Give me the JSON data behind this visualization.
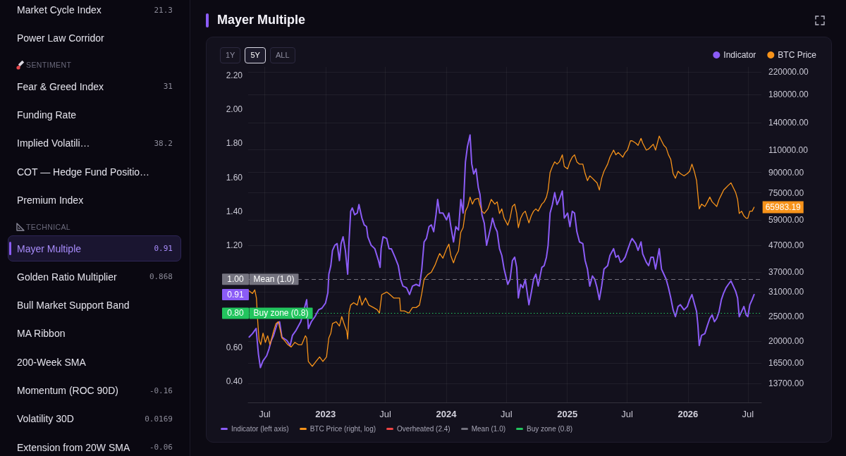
{
  "chart_data": [
    {
      "type": "other",
      "categories": [
        "Market Cycle Index",
        "Power Law Corridor"
      ],
      "values": [
        21.3,
        null
      ],
      "data_labels": true
    },
    {
      "type": "other",
      "title": "SENTIMENT",
      "categories": [
        "Fear & Greed Index",
        "Funding Rate",
        "Implied Volatili…",
        "COT — Hedge Fund Positio…",
        "Premium Index"
      ],
      "values": [
        31,
        null,
        38.2,
        null,
        null
      ],
      "data_labels": true
    },
    {
      "type": "other",
      "title": "TECHNICAL",
      "categories": [
        "Mayer Multiple",
        "Golden Ratio Multiplier",
        "Bull Market Support Band",
        "MA Ribbon",
        "200-Week SMA",
        "Momentum (ROC 90D)",
        "Volatility 30D",
        "Extension from 20W SMA"
      ],
      "values": [
        0.91,
        0.868,
        null,
        null,
        null,
        -0.16,
        0.0169,
        -0.06
      ],
      "data_labels": true
    },
    {
      "type": "line",
      "title": "Mayer Multiple",
      "annotations": [
        "1Y",
        "5Y",
        "ALL",
        {
          "text": "1.00",
          "y": 1
        },
        {
          "text": "0.91",
          "y": 0.91
        },
        {
          "text": "0.80",
          "y": 0.8
        },
        "Indicator (left axis)",
        "BTC Price (right, log)",
        "Overheated (2.4)",
        "Mean (1.0)",
        "Buy zone (0.8)"
      ],
      "series": [
        {
          "name": "Indicator",
          "color": "#8b5cf6",
          "x": [
            "2022-05-15",
            "2022-05-25",
            "2022-06-05",
            "2022-06-12",
            "2022-06-18",
            "2022-06-26",
            "2022-07-07",
            "2022-07-14",
            "2022-07-21",
            "2022-07-28",
            "2022-08-08",
            "2022-08-15",
            "2022-08-22",
            "2022-09-06",
            "2022-09-16",
            "2022-09-23",
            "2022-10-04",
            "2022-10-18",
            "2022-10-29",
            "2022-11-05",
            "2022-11-10",
            "2022-11-19",
            "2022-11-30",
            "2022-12-11",
            "2022-12-21",
            "2023-01-01",
            "2023-01-08",
            "2023-01-11",
            "2023-01-17",
            "2023-01-22",
            "2023-01-29",
            "2023-02-05",
            "2023-02-12",
            "2023-02-17",
            "2023-02-23",
            "2023-03-02",
            "2023-03-09",
            "2023-03-13",
            "2023-03-18",
            "2023-03-23",
            "2023-03-30",
            "2023-04-07",
            "2023-04-12",
            "2023-04-21",
            "2023-04-28",
            "2023-05-05",
            "2023-05-09",
            "2023-05-19",
            "2023-05-30",
            "2023-06-10",
            "2023-06-15",
            "2023-06-18",
            "2023-06-24",
            "2023-07-05",
            "2023-07-12",
            "2023-07-19",
            "2023-07-30",
            "2023-08-09",
            "2023-08-16",
            "2023-08-23",
            "2023-09-03",
            "2023-09-12",
            "2023-09-21",
            "2023-10-02",
            "2023-10-12",
            "2023-10-19",
            "2023-10-26",
            "2023-11-02",
            "2023-11-10",
            "2023-11-17",
            "2023-11-24",
            "2023-12-01",
            "2023-12-06",
            "2023-12-12",
            "2023-12-22",
            "2024-01-02",
            "2024-01-09",
            "2024-01-15",
            "2024-01-23",
            "2024-01-30",
            "2024-02-07",
            "2024-02-14",
            "2024-02-21",
            "2024-02-28",
            "2024-03-05",
            "2024-03-13",
            "2024-03-18",
            "2024-03-24",
            "2024-03-31",
            "2024-04-07",
            "2024-04-12",
            "2024-04-18",
            "2024-04-25",
            "2024-05-02",
            "2024-05-09",
            "2024-05-16",
            "2024-05-20",
            "2024-05-27",
            "2024-06-03",
            "2024-06-10",
            "2024-06-17",
            "2024-06-24",
            "2024-07-05",
            "2024-07-12",
            "2024-07-19",
            "2024-07-26",
            "2024-08-01",
            "2024-08-06",
            "2024-08-13",
            "2024-08-20",
            "2024-08-27",
            "2024-09-07",
            "2024-09-14",
            "2024-09-21",
            "2024-09-28",
            "2024-10-05",
            "2024-10-16",
            "2024-10-23",
            "2024-10-30",
            "2024-11-04",
            "2024-11-10",
            "2024-11-17",
            "2024-11-24",
            "2024-12-01",
            "2024-12-08",
            "2024-12-17",
            "2024-12-23",
            "2025-01-02",
            "2025-01-09",
            "2025-01-16",
            "2025-01-23",
            "2025-01-30",
            "2025-02-07",
            "2025-02-17",
            "2025-02-24",
            "2025-03-03",
            "2025-03-10",
            "2025-03-18",
            "2025-03-25",
            "2025-04-01",
            "2025-04-08",
            "2025-04-15",
            "2025-04-22",
            "2025-05-03",
            "2025-05-10",
            "2025-05-21",
            "2025-05-28",
            "2025-06-04",
            "2025-06-11",
            "2025-06-18",
            "2025-06-25",
            "2025-07-02",
            "2025-07-11",
            "2025-07-16",
            "2025-07-27",
            "2025-08-03",
            "2025-08-12",
            "2025-08-17",
            "2025-08-28",
            "2025-09-04",
            "2025-09-11",
            "2025-09-18",
            "2025-09-25",
            "2025-10-06",
            "2025-10-13",
            "2025-10-20",
            "2025-10-27",
            "2025-11-03",
            "2025-11-10",
            "2025-11-17",
            "2025-11-24",
            "2025-12-02",
            "2025-12-09",
            "2025-12-20",
            "2025-12-30",
            "2026-01-06",
            "2026-01-13",
            "2026-01-20",
            "2026-01-27",
            "2026-01-31",
            "2026-02-04",
            "2026-02-11",
            "2026-02-21",
            "2026-03-01",
            "2026-03-08",
            "2026-03-15",
            "2026-03-22",
            "2026-03-29",
            "2026-04-05",
            "2026-04-12",
            "2026-04-19",
            "2026-04-26",
            "2026-05-03",
            "2026-05-11",
            "2026-05-18",
            "2026-05-25",
            "2026-05-31",
            "2026-06-05",
            "2026-06-12",
            "2026-06-19",
            "2026-06-26",
            "2026-07-01",
            "2026-07-07",
            "2026-07-14",
            "2026-07-20"
          ],
          "values": [
            0.66,
            0.68,
            0.71,
            0.56,
            0.48,
            0.52,
            0.55,
            0.59,
            0.64,
            0.67,
            0.74,
            0.75,
            0.66,
            0.64,
            0.61,
            0.67,
            0.7,
            0.75,
            null,
            0.88,
            0.71,
            0.75,
            0.78,
            0.82,
            0.83,
            0.86,
            0.92,
            1.03,
            1.08,
            1.17,
            1.2,
            1.21,
            1.11,
            1.21,
            1.25,
            1.17,
            1.03,
            1.22,
            1.4,
            1.42,
            1.38,
            1.39,
            1.44,
            1.36,
            1.32,
            1.31,
            1.25,
            1.2,
            1.18,
            1.11,
            1.07,
            1.18,
            1.25,
            1.24,
            1.18,
            1.18,
            1.13,
            1.08,
            1.0,
            0.96,
            0.95,
            0.91,
            0.96,
            0.97,
            0.96,
            1.06,
            1.22,
            1.24,
            1.31,
            1.32,
            1.28,
            1.38,
            1.47,
            1.39,
            1.39,
            1.35,
            1.39,
            1.31,
            1.22,
            1.31,
            1.29,
            1.47,
            1.39,
            1.69,
            1.78,
            1.85,
            1.68,
            1.62,
            1.65,
            1.54,
            1.5,
            1.38,
            1.33,
            1.2,
            1.26,
            1.32,
            1.36,
            1.31,
            1.28,
            1.18,
            1.14,
            1.06,
            0.97,
            1.0,
            1.11,
            1.13,
            1.07,
            0.89,
            0.97,
            0.95,
            1.0,
            0.85,
            0.92,
            1.0,
            1.03,
            0.96,
            1.07,
            1.08,
            1.13,
            1.2,
            1.39,
            1.44,
            1.51,
            1.44,
            1.47,
            1.52,
            1.36,
            1.39,
            1.31,
            1.4,
            1.39,
            1.28,
            1.22,
            1.21,
            1.11,
            1.06,
            0.96,
            1.02,
            1.0,
            0.95,
            0.88,
            0.96,
            1.06,
            1.08,
            1.14,
            1.18,
            1.13,
            1.14,
            1.1,
            1.11,
            1.13,
            1.17,
            1.22,
            1.24,
            1.21,
            1.17,
            1.22,
            1.15,
            1.1,
            1.08,
            1.13,
            1.13,
            1.06,
            1.18,
            1.06,
            1.03,
            1.0,
            0.95,
            0.89,
            0.82,
            0.78,
            0.84,
            0.85,
            0.82,
            0.84,
            0.88,
            0.91,
            0.86,
            0.81,
            0.73,
            0.61,
            0.67,
            0.68,
            0.73,
            0.77,
            0.79,
            0.75,
            0.77,
            0.81,
            0.88,
            0.92,
            0.95,
            0.97,
            0.99,
            0.96,
            0.93,
            0.89,
            0.78,
            0.81,
            0.84,
            0.79,
            0.78,
            0.85,
            0.88,
            0.91
          ]
        },
        {
          "name": "BTC Price",
          "color": "#f7931a",
          "axis": "y2",
          "x": [
            "2022-05-15",
            "2022-05-25",
            "2022-06-01",
            "2022-06-06",
            "2022-06-10",
            "2022-06-14",
            "2022-06-19",
            "2022-06-26",
            "2022-07-03",
            "2022-07-10",
            "2022-07-17",
            "2022-07-28",
            "2022-08-04",
            "2022-08-11",
            "2022-08-16",
            "2022-08-22",
            "2022-08-29",
            "2022-09-09",
            "2022-09-19",
            "2022-09-30",
            "2022-10-11",
            "2022-10-21",
            "2022-11-01",
            "2022-11-05",
            "2022-11-10",
            "2022-11-15",
            "2022-11-22",
            "2022-12-03",
            "2022-12-14",
            "2022-12-24",
            "2023-01-04",
            "2023-01-11",
            "2023-01-17",
            "2023-01-22",
            "2023-02-02",
            "2023-02-12",
            "2023-02-19",
            "2023-02-26",
            "2023-03-06",
            "2023-03-09",
            "2023-03-13",
            "2023-03-18",
            "2023-03-27",
            "2023-04-07",
            "2023-04-14",
            "2023-04-21",
            "2023-05-02",
            "2023-05-12",
            "2023-05-26",
            "2023-06-06",
            "2023-06-13",
            "2023-06-20",
            "2023-07-05",
            "2023-07-15",
            "2023-07-26",
            "2023-08-13",
            "2023-08-16",
            "2023-08-27",
            "2023-09-10",
            "2023-09-21",
            "2023-10-02",
            "2023-10-12",
            "2023-10-19",
            "2023-10-26",
            "2023-11-06",
            "2023-11-17",
            "2023-11-28",
            "2023-12-06",
            "2023-12-12",
            "2023-12-22",
            "2024-01-02",
            "2024-01-09",
            "2024-01-15",
            "2024-01-23",
            "2024-01-30",
            "2024-02-07",
            "2024-02-14",
            "2024-02-21",
            "2024-02-28",
            "2024-03-06",
            "2024-03-13",
            "2024-03-20",
            "2024-03-27",
            "2024-04-07",
            "2024-04-11",
            "2024-04-18",
            "2024-04-25",
            "2024-05-06",
            "2024-05-16",
            "2024-05-27",
            "2024-06-03",
            "2024-06-10",
            "2024-06-17",
            "2024-06-24",
            "2024-07-05",
            "2024-07-12",
            "2024-07-19",
            "2024-07-26",
            "2024-08-01",
            "2024-08-06",
            "2024-08-13",
            "2024-08-20",
            "2024-08-27",
            "2024-09-07",
            "2024-09-14",
            "2024-09-21",
            "2024-09-28",
            "2024-10-05",
            "2024-10-16",
            "2024-10-23",
            "2024-10-30",
            "2024-11-04",
            "2024-11-10",
            "2024-11-17",
            "2024-11-24",
            "2024-12-01",
            "2024-12-08",
            "2024-12-17",
            "2024-12-23",
            "2025-01-02",
            "2025-01-09",
            "2025-01-16",
            "2025-01-23",
            "2025-01-30",
            "2025-02-07",
            "2025-02-17",
            "2025-02-24",
            "2025-03-03",
            "2025-03-10",
            "2025-03-18",
            "2025-03-25",
            "2025-04-01",
            "2025-04-08",
            "2025-04-15",
            "2025-04-22",
            "2025-05-03",
            "2025-05-10",
            "2025-05-21",
            "2025-05-28",
            "2025-06-04",
            "2025-06-11",
            "2025-06-18",
            "2025-06-25",
            "2025-07-02",
            "2025-07-11",
            "2025-07-16",
            "2025-07-27",
            "2025-08-03",
            "2025-08-12",
            "2025-08-17",
            "2025-08-28",
            "2025-09-04",
            "2025-09-11",
            "2025-09-18",
            "2025-09-25",
            "2025-10-06",
            "2025-10-13",
            "2025-10-20",
            "2025-10-27",
            "2025-11-03",
            "2025-11-10",
            "2025-11-17",
            "2025-11-24",
            "2025-12-02",
            "2025-12-09",
            "2025-12-20",
            "2025-12-30",
            "2026-01-06",
            "2026-01-13",
            "2026-01-20",
            "2026-01-27",
            "2026-01-31",
            "2026-02-04",
            "2026-02-11",
            "2026-02-21",
            "2026-03-01",
            "2026-03-08",
            "2026-03-15",
            "2026-03-22",
            "2026-03-29",
            "2026-04-05",
            "2026-04-12",
            "2026-04-19",
            "2026-04-26",
            "2026-05-03",
            "2026-05-11",
            "2026-05-18",
            "2026-05-25",
            "2026-05-31",
            "2026-06-05",
            "2026-06-12",
            "2026-06-19",
            "2026-06-26",
            "2026-07-01",
            "2026-07-07",
            "2026-07-14",
            "2026-07-20"
          ],
          "values": [
            31300,
            30600,
            31600,
            29400,
            23800,
            20200,
            19400,
            21500,
            19800,
            21000,
            19400,
            21900,
            23400,
            23800,
            22400,
            20600,
            20200,
            19400,
            19000,
            19800,
            19400,
            19400,
            21000,
            20600,
            16700,
            16400,
            16000,
            16700,
            17400,
            16700,
            17400,
            20600,
            21500,
            23400,
            23800,
            22900,
            24900,
            23400,
            21900,
            20400,
            25900,
            27600,
            28200,
            27600,
            30000,
            27600,
            29400,
            27600,
            27000,
            26500,
            25700,
            30300,
            31000,
            30300,
            29400,
            29400,
            26200,
            26200,
            25700,
            27000,
            27000,
            27600,
            30600,
            34700,
            36200,
            37000,
            39400,
            41900,
            43700,
            41900,
            45600,
            47500,
            42800,
            40200,
            42800,
            44700,
            52800,
            55000,
            63700,
            66400,
            72200,
            67800,
            70700,
            71400,
            67800,
            63700,
            62400,
            65000,
            70700,
            67800,
            69200,
            62400,
            65000,
            59800,
            56200,
            59800,
            66400,
            67800,
            62400,
            55000,
            59800,
            62400,
            63700,
            57400,
            61100,
            63700,
            65000,
            63700,
            67800,
            69200,
            72200,
            76900,
            89900,
            94800,
            98800,
            96800,
            98800,
            105200,
            94800,
            92800,
            98800,
            103000,
            105200,
            98800,
            96800,
            96800,
            89000,
            83600,
            87200,
            85400,
            83600,
            81900,
            76900,
            85400,
            90900,
            96800,
            103000,
            109700,
            105200,
            107400,
            105200,
            103000,
            107400,
            109700,
            119200,
            119200,
            116800,
            114400,
            121800,
            116800,
            109700,
            110800,
            113200,
            115600,
            109700,
            124300,
            119200,
            114400,
            112000,
            105200,
            100900,
            89000,
            85400,
            90900,
            89000,
            87200,
            89000,
            90900,
            96800,
            90900,
            83600,
            73700,
            65000,
            67800,
            66400,
            69200,
            72200,
            69200,
            67800,
            66400,
            70700,
            73700,
            76900,
            78500,
            80200,
            81900,
            78500,
            75300,
            70700,
            62400,
            63700,
            61100,
            59800,
            59800,
            63700,
            63700,
            65983.19
          ],
          "value_labels": [
            null,
            null,
            null,
            null,
            null,
            null,
            null,
            null,
            null,
            null,
            null,
            null,
            null,
            null,
            null,
            null,
            null,
            null,
            null,
            null,
            null,
            null,
            null,
            null,
            null,
            null,
            null,
            null,
            null,
            null,
            null,
            null,
            null,
            null,
            null,
            null,
            null,
            null,
            null,
            null,
            null,
            null,
            null,
            null,
            null,
            null,
            null,
            null,
            null,
            null,
            null,
            null,
            null,
            null,
            null,
            null,
            null,
            null,
            null,
            null,
            null,
            null,
            null,
            null,
            null,
            null,
            null,
            null,
            null,
            null,
            null,
            null,
            null,
            null,
            null,
            null,
            null,
            null,
            null,
            null,
            null,
            null,
            null,
            null,
            null,
            null,
            null,
            null,
            null,
            null,
            null,
            null,
            null,
            null,
            null,
            null,
            null,
            null,
            null,
            null,
            null,
            null,
            null,
            null,
            null,
            null,
            null,
            null,
            null,
            null,
            null,
            null,
            null,
            null,
            null,
            null,
            null,
            null,
            null,
            null,
            null,
            null,
            null,
            null,
            null,
            null,
            null,
            null,
            null,
            null,
            null,
            null,
            null,
            null,
            null,
            null,
            null,
            null,
            null,
            null,
            null,
            null,
            null,
            null,
            null,
            null,
            null,
            null,
            null,
            null,
            null,
            null,
            null,
            null,
            null,
            null,
            null,
            null,
            null,
            null,
            null,
            null,
            null,
            null,
            null,
            null,
            null,
            null,
            null,
            null,
            null,
            null,
            null,
            null,
            null,
            null,
            null,
            null,
            null,
            null,
            null,
            null,
            null,
            null,
            null,
            null,
            null,
            null,
            null,
            null,
            null,
            null,
            null,
            null,
            null,
            null,
            "65983.19"
          ]
        }
      ],
      "xlim": [
        "2022-05-12",
        "2026-08-11"
      ],
      "xticks": [
        {
          "value": "2022-07-01",
          "label": "Jul"
        },
        {
          "value": "2023-01-01",
          "label": "2023"
        },
        {
          "value": "2023-07-01",
          "label": "Jul"
        },
        {
          "value": "2024-01-01",
          "label": "2024"
        },
        {
          "value": "2024-07-01",
          "label": "Jul"
        },
        {
          "value": "2025-01-01",
          "label": "2025"
        },
        {
          "value": "2025-07-01",
          "label": "Jul"
        },
        {
          "value": "2026-01-01",
          "label": "2026"
        },
        {
          "value": "2026-07-01",
          "label": "Jul"
        }
      ],
      "ylim": [
        0.275,
        2.25
      ],
      "yticks": [
        {
          "value": 0.4,
          "label": "0.40"
        },
        {
          "value": 0.6,
          "label": "0.60"
        },
        {
          "value": 0.8,
          "label": null
        },
        {
          "value": 1,
          "label": null
        },
        {
          "value": 1.2,
          "label": "1.20"
        },
        {
          "value": 1.4,
          "label": "1.40"
        },
        {
          "value": 1.6,
          "label": "1.60"
        },
        {
          "value": 1.8,
          "label": "1.80"
        },
        {
          "value": 2,
          "label": "2.00"
        },
        {
          "value": 2.2,
          "label": "2.20"
        }
      ],
      "y2lim": [
        11600,
        230000
      ],
      "y2ticks": [
        {
          "value": 13700,
          "label": "13700.00"
        },
        {
          "value": 16500,
          "label": "16500.00"
        },
        {
          "value": 20000,
          "label": "20000.00"
        },
        {
          "value": 25000,
          "label": "25000.00"
        },
        {
          "value": 31000,
          "label": "31000.00"
        },
        {
          "value": 37000,
          "label": "37000.00"
        },
        {
          "value": 47000,
          "label": "47000.00"
        },
        {
          "value": 59000,
          "label": "59000.00"
        },
        {
          "value": 75000,
          "label": "75000.00"
        },
        {
          "value": 90000,
          "label": "90000.00"
        },
        {
          "value": 110000,
          "label": "110000.00"
        },
        {
          "value": 140000,
          "label": "140000.00"
        },
        {
          "value": 180000,
          "label": "180000.00"
        },
        {
          "value": 220000,
          "label": "220000.00"
        }
      ],
      "log": "y2",
      "grid": true,
      "legend": "top right",
      "ref_lines": [
        {
          "axis": "y",
          "value": 1,
          "label": "Mean (1.0)",
          "color": "#74737f",
          "line_style": "dashed"
        },
        {
          "axis": "y",
          "value": 0.8,
          "label": "Buy zone (0.8)",
          "color": "#22c55e",
          "line_style": "dotted"
        }
      ]
    }
  ]
}
